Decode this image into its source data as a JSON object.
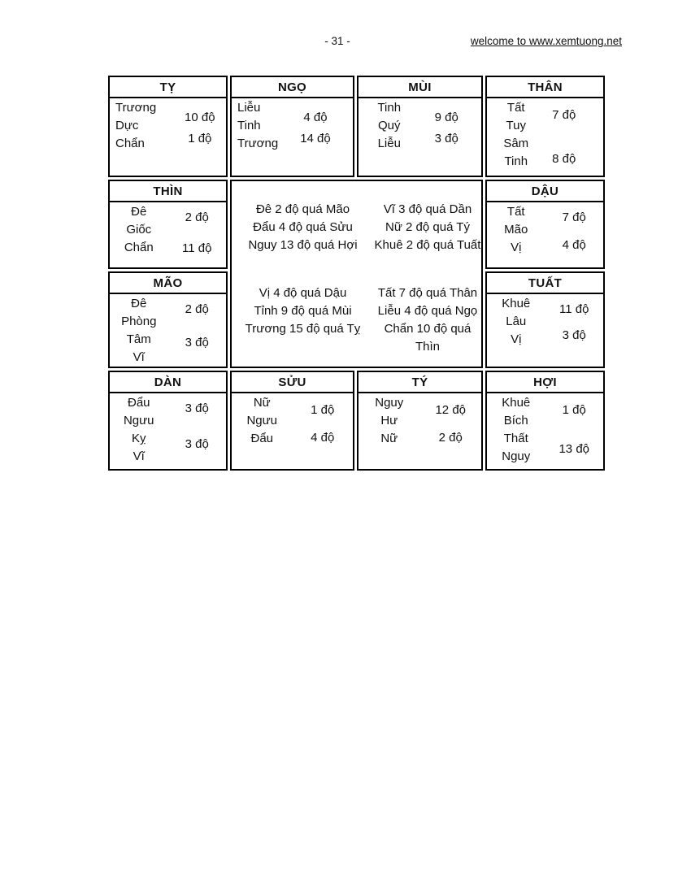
{
  "header": {
    "page_number": "- 31 -",
    "link_text": "welcome to www.xemtuong.net"
  },
  "table": {
    "cells": {
      "ty": {
        "header": "TỴ",
        "names": [
          "Trương",
          "Dực",
          "Chẩn"
        ],
        "values": [
          "10 độ",
          "1 độ"
        ]
      },
      "ngo": {
        "header": "NGỌ",
        "names": [
          "Liễu",
          "Tinh",
          "Trương"
        ],
        "values": [
          "4 độ",
          "14 độ"
        ]
      },
      "mui": {
        "header": "MÙI",
        "names": [
          "Tinh",
          "Quý",
          "Liễu"
        ],
        "values": [
          "9 độ",
          "3 độ"
        ]
      },
      "than": {
        "header": "THÂN",
        "names": [
          "Tất",
          "Tuy",
          "Sâm",
          "Tinh"
        ],
        "values": [
          "7 độ",
          "8 độ"
        ]
      },
      "thin": {
        "header": "THÌN",
        "names": [
          "Đê",
          "Giốc",
          "Chẩn"
        ],
        "values": [
          "2 độ",
          "11 độ"
        ]
      },
      "dau": {
        "header": "DẬU",
        "names": [
          "Tất",
          "Mão",
          "Vị"
        ],
        "values": [
          "7 độ",
          "4 độ"
        ]
      },
      "mao": {
        "header": "MÃO",
        "names": [
          "Đê",
          "Phòng",
          "Tâm",
          "Vĩ"
        ],
        "values": [
          "2 độ",
          "3 độ"
        ]
      },
      "tuat": {
        "header": "TUẤT",
        "names": [
          "Khuê",
          "Lâu",
          "Vị"
        ],
        "values": [
          "11 độ",
          "3 độ"
        ]
      },
      "dan": {
        "header": "DÀN",
        "names": [
          "Đẩu",
          "Ngưu",
          "Kỵ",
          "Vĩ"
        ],
        "values": [
          "3 độ",
          "3 độ"
        ]
      },
      "suu": {
        "header": "SỬU",
        "names": [
          "Nữ",
          "Ngưu",
          "Đẩu"
        ],
        "values": [
          "1 độ",
          "4 độ"
        ]
      },
      "ti": {
        "header": "TÝ",
        "names": [
          "Nguy",
          "Hư",
          "Nữ"
        ],
        "values": [
          "12 độ",
          "2 độ"
        ]
      },
      "hoi": {
        "header": "HỢI",
        "names": [
          "Khuê",
          "Bích",
          "Thất",
          "Nguy"
        ],
        "values": [
          "1 độ",
          "13 độ"
        ]
      }
    },
    "center_notes": {
      "block1_left": [
        "Đê 2 độ quá Mão",
        "Đẩu 4 độ quá Sửu",
        "Nguy 13 độ quá Hợi"
      ],
      "block1_right": [
        "Vĩ 3 độ quá Dần",
        "Nữ 2 độ quá Tý",
        "Khuê 2 độ quá Tuất"
      ],
      "block2_left": [
        "Vị 4 độ quá Dậu",
        "Tỉnh 9 độ quá Mùi",
        "Trương 15 độ quá Tỵ"
      ],
      "block2_right": [
        "Tất 7 độ quá Thân",
        "Liễu 4 độ quá Ngọ",
        "Chẩn 10 độ quá Thìn"
      ]
    }
  }
}
